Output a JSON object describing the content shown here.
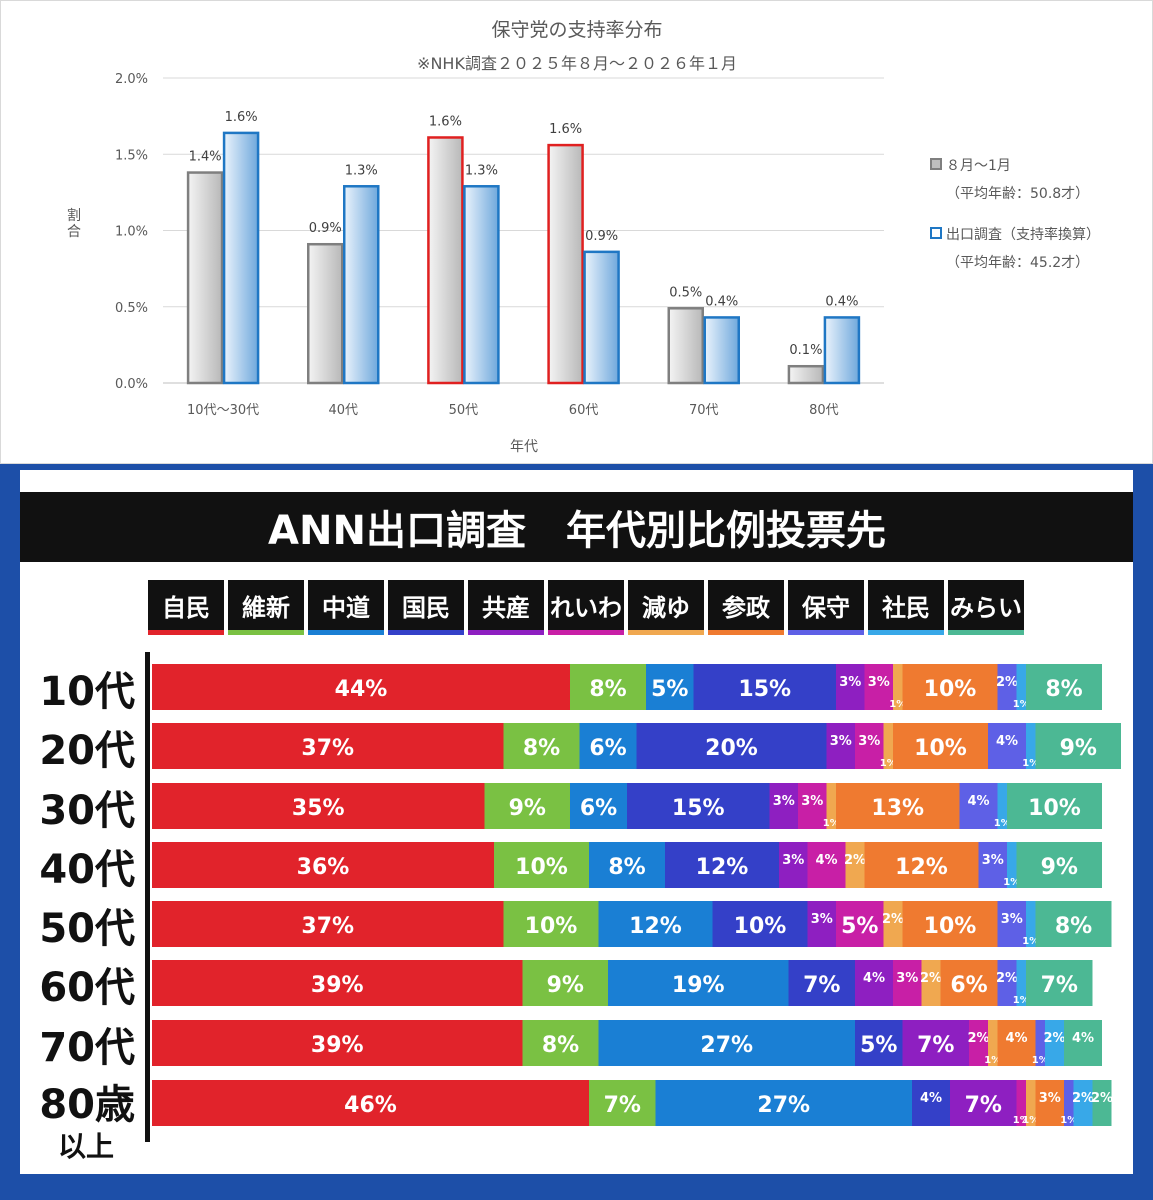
{
  "chart_data": [
    {
      "type": "bar",
      "title": "保守党の支持率分布",
      "subtitle": "※NHK調査２０２５年８月～２０２６年１月",
      "xlabel": "年代",
      "ylabel": "割合",
      "ylim": [
        0,
        2.0
      ],
      "y_ticks": [
        "0.0%",
        "0.5%",
        "1.0%",
        "1.5%",
        "2.0%"
      ],
      "grid": true,
      "legend_position": "right",
      "categories": [
        "10代～30代",
        "40代",
        "50代",
        "60代",
        "70代",
        "80代"
      ],
      "series": [
        {
          "name": "８月～1月",
          "legend_note": "（平均年齢：50.8才）",
          "values": [
            1.4,
            0.9,
            1.6,
            1.6,
            0.5,
            0.1
          ],
          "labels": [
            "1.4%",
            "0.9%",
            "1.6%",
            "1.6%",
            "0.5%",
            "0.1%"
          ],
          "display_values": [
            1.38,
            0.91,
            1.61,
            1.56,
            0.49,
            0.11
          ],
          "color": "#a6a6a6",
          "highlight_color": "#e02020",
          "highlighted": [
            false,
            false,
            true,
            true,
            false,
            false
          ]
        },
        {
          "name": "出口調査（支持率換算）",
          "legend_note": "（平均年齢：45.2才）",
          "values": [
            1.6,
            1.3,
            1.3,
            0.9,
            0.4,
            0.4
          ],
          "labels": [
            "1.6%",
            "1.3%",
            "1.3%",
            "0.9%",
            "0.4%",
            "0.4%"
          ],
          "display_values": [
            1.64,
            1.29,
            1.29,
            0.86,
            0.43,
            0.43
          ],
          "color": "#1f77c4"
        }
      ]
    },
    {
      "type": "bar",
      "stacked": true,
      "orientation": "horizontal",
      "title": "ANN出口調査　年代別比例投票先",
      "categories": [
        "10代",
        "20代",
        "30代",
        "40代",
        "50代",
        "60代",
        "70代",
        "80歳"
      ],
      "category_sublabels": [
        "",
        "",
        "",
        "",
        "",
        "",
        "",
        "以上"
      ],
      "parties": [
        "自民",
        "維新",
        "中道",
        "国民",
        "共産",
        "れいわ",
        "減ゆ",
        "参政",
        "保守",
        "社民",
        "みらい"
      ],
      "party_colors": [
        "#e1232b",
        "#7ac143",
        "#1a7fd4",
        "#3440c8",
        "#8e1fc1",
        "#c81fa6",
        "#f0a850",
        "#ef7a30",
        "#5e60e6",
        "#38a8e8",
        "#4cb894"
      ],
      "series": [
        {
          "name": "自民",
          "values": [
            44,
            37,
            35,
            36,
            37,
            39,
            39,
            46
          ]
        },
        {
          "name": "維新",
          "values": [
            8,
            8,
            9,
            10,
            10,
            9,
            8,
            7
          ]
        },
        {
          "name": "中道",
          "values": [
            5,
            6,
            6,
            8,
            12,
            19,
            27,
            27
          ]
        },
        {
          "name": "国民",
          "values": [
            15,
            20,
            15,
            12,
            10,
            7,
            5,
            4
          ]
        },
        {
          "name": "共産",
          "values": [
            3,
            3,
            3,
            3,
            3,
            4,
            7,
            7
          ]
        },
        {
          "name": "れいわ",
          "values": [
            3,
            3,
            3,
            4,
            5,
            3,
            2,
            1
          ]
        },
        {
          "name": "減ゆ",
          "values": [
            1,
            1,
            1,
            2,
            2,
            2,
            1,
            1
          ]
        },
        {
          "name": "参政",
          "values": [
            10,
            10,
            13,
            12,
            10,
            6,
            4,
            3
          ]
        },
        {
          "name": "保守",
          "values": [
            2,
            4,
            4,
            3,
            3,
            2,
            1,
            1
          ]
        },
        {
          "name": "社民",
          "values": [
            1,
            1,
            1,
            1,
            1,
            1,
            2,
            2
          ]
        },
        {
          "name": "みらい",
          "values": [
            8,
            9,
            10,
            9,
            8,
            7,
            4,
            2
          ]
        }
      ]
    }
  ]
}
